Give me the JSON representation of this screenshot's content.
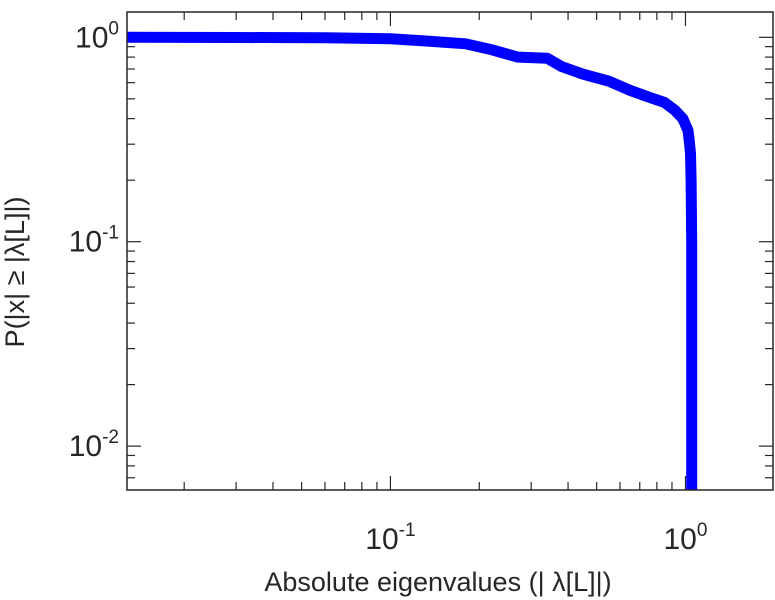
{
  "chart_data": {
    "type": "line",
    "xlabel": "Absolute eigenvalues (|    λ[L]|)",
    "ylabel": "P(|x|  ≥ |λ[L]|)",
    "x_scale": "log",
    "y_scale": "log",
    "xlim": [
      0.0128,
      1.98
    ],
    "ylim": [
      0.0061,
      1.33
    ],
    "x_ticks": [
      {
        "value": 0.1,
        "base": "10",
        "exp": "-1"
      },
      {
        "value": 1,
        "base": "10",
        "exp": "0"
      }
    ],
    "y_ticks": [
      {
        "value": 1,
        "base": "10",
        "exp": "0"
      },
      {
        "value": 0.1,
        "base": "10",
        "exp": "-1"
      },
      {
        "value": 0.01,
        "base": "10",
        "exp": "-2"
      }
    ],
    "grid": false,
    "line_color": "#0000ff",
    "axis_color": "#262626",
    "series": [
      {
        "x": [
          0.0128,
          0.03,
          0.06,
          0.1,
          0.13,
          0.18,
          0.22,
          0.27,
          0.34,
          0.38,
          0.45,
          0.55,
          0.65,
          0.75,
          0.85,
          0.92,
          0.98,
          1.02,
          1.03,
          1.04,
          1.045,
          1.05,
          1.05,
          1.05
        ],
        "y": [
          1.0,
          0.998,
          0.995,
          0.985,
          0.96,
          0.93,
          0.87,
          0.8,
          0.79,
          0.72,
          0.66,
          0.61,
          0.55,
          0.51,
          0.48,
          0.44,
          0.4,
          0.35,
          0.31,
          0.27,
          0.2,
          0.1,
          0.02,
          0.0061
        ]
      }
    ]
  }
}
